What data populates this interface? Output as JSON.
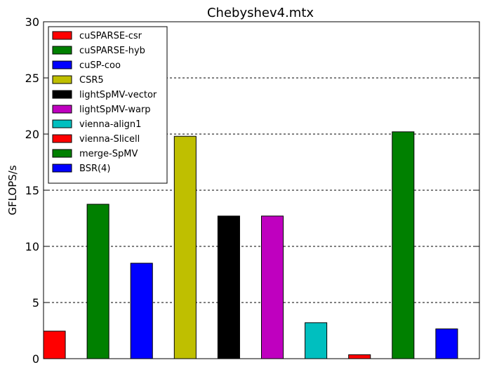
{
  "chart_data": {
    "type": "bar",
    "title": "Chebyshev4.mtx",
    "xlabel": "",
    "ylabel": "GFLOPS/s",
    "ylim": [
      0,
      30
    ],
    "yticks": [
      0,
      5,
      10,
      15,
      20,
      25,
      30
    ],
    "grid": "horizontal dashed",
    "legend_position": "top-left",
    "series": [
      {
        "name": "cuSPARSE-csr",
        "value": 2.45,
        "color": "#ff0000"
      },
      {
        "name": "cuSPARSE-hyb",
        "value": 13.75,
        "color": "#008000"
      },
      {
        "name": "cuSP-coo",
        "value": 8.5,
        "color": "#0000ff"
      },
      {
        "name": "CSR5",
        "value": 19.8,
        "color": "#bfbf00"
      },
      {
        "name": "lightSpMV-vector",
        "value": 12.7,
        "color": "#000000"
      },
      {
        "name": "lightSpMV-warp",
        "value": 12.7,
        "color": "#bf00bf"
      },
      {
        "name": "vienna-align1",
        "value": 3.2,
        "color": "#00bfbf"
      },
      {
        "name": "vienna-Slicell",
        "value": 0.35,
        "color": "#ff0000"
      },
      {
        "name": "merge-SpMV",
        "value": 20.2,
        "color": "#008000"
      },
      {
        "name": "BSR(4)",
        "value": 2.65,
        "color": "#0000ff"
      }
    ]
  }
}
